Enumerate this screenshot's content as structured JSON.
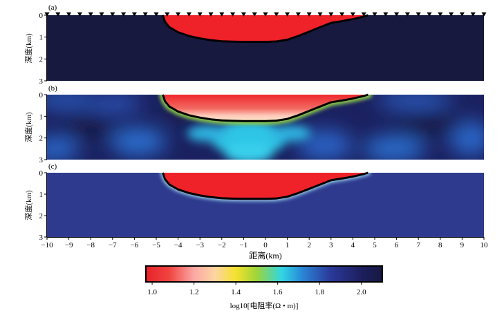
{
  "chart_data": {
    "type": "heatmap",
    "panels": [
      {
        "label": "(a)",
        "kind": "true-model"
      },
      {
        "label": "(b)",
        "kind": "inversion-smooth"
      },
      {
        "label": "(c)",
        "kind": "inversion-sharp"
      }
    ],
    "xlabel": "距离(km)",
    "ylabel": "深度(km)",
    "xlim": [
      -10,
      10
    ],
    "ylim": [
      3,
      0
    ],
    "x_ticks": [
      -10,
      -9,
      -8,
      -7,
      -6,
      -5,
      -4,
      -3,
      -2,
      -1,
      0,
      1,
      2,
      3,
      4,
      5,
      6,
      7,
      8,
      9,
      10
    ],
    "y_ticks": [
      0,
      1,
      2,
      3
    ],
    "stations_x": [
      -10,
      -9.5,
      -9,
      -8.5,
      -8,
      -7.5,
      -7,
      -6.5,
      -6,
      -5.5,
      -5,
      -4.5,
      -4,
      -3.5,
      -3,
      -2.5,
      -2,
      -1.5,
      -1,
      -0.5,
      0,
      0.5,
      1,
      1.5,
      2,
      2.5,
      3,
      3.5,
      4,
      4.5,
      5,
      5.5,
      6,
      6.5,
      7,
      7.5,
      8,
      8.5,
      9,
      9.5,
      10
    ],
    "anomaly_boundary": {
      "x": [
        -4.7,
        -4.6,
        -4.4,
        -4.0,
        -3.5,
        -3.0,
        -2.5,
        -2.0,
        -1.5,
        -1.0,
        -0.5,
        0.0,
        0.5,
        1.0,
        1.5,
        2.0,
        2.5,
        3.0,
        3.5,
        4.0,
        4.5,
        4.7
      ],
      "depth": [
        0.0,
        0.3,
        0.55,
        0.78,
        0.95,
        1.06,
        1.14,
        1.19,
        1.21,
        1.22,
        1.22,
        1.22,
        1.2,
        1.12,
        0.95,
        0.75,
        0.55,
        0.35,
        0.27,
        0.18,
        0.06,
        0.0
      ]
    },
    "values": {
      "anomaly": 1.0,
      "background": 2.1
    },
    "colorbar": {
      "label": "log10[电阻率(Ω • m)]",
      "range": [
        0.97,
        2.1
      ],
      "ticks": [
        1.0,
        1.2,
        1.4,
        1.6,
        1.8,
        2.0
      ],
      "tick_labels": [
        "1.0",
        "1.2",
        "1.4",
        "1.6",
        "1.8",
        "2.0"
      ],
      "stops": [
        {
          "v": 0.97,
          "color": "#e8232a"
        },
        {
          "v": 1.08,
          "color": "#f0433f"
        },
        {
          "v": 1.2,
          "color": "#fba8a4"
        },
        {
          "v": 1.3,
          "color": "#fdd5a2"
        },
        {
          "v": 1.4,
          "color": "#f5e12e"
        },
        {
          "v": 1.5,
          "color": "#9ed43a"
        },
        {
          "v": 1.62,
          "color": "#2fd6e4"
        },
        {
          "v": 1.72,
          "color": "#2a84d6"
        },
        {
          "v": 1.85,
          "color": "#2b3a9a"
        },
        {
          "v": 2.0,
          "color": "#1d1f5e"
        },
        {
          "v": 2.1,
          "color": "#161842"
        }
      ]
    },
    "colors": {
      "background": "#17193f",
      "anomaly": "#ee2228",
      "boundary": "#000000"
    }
  }
}
